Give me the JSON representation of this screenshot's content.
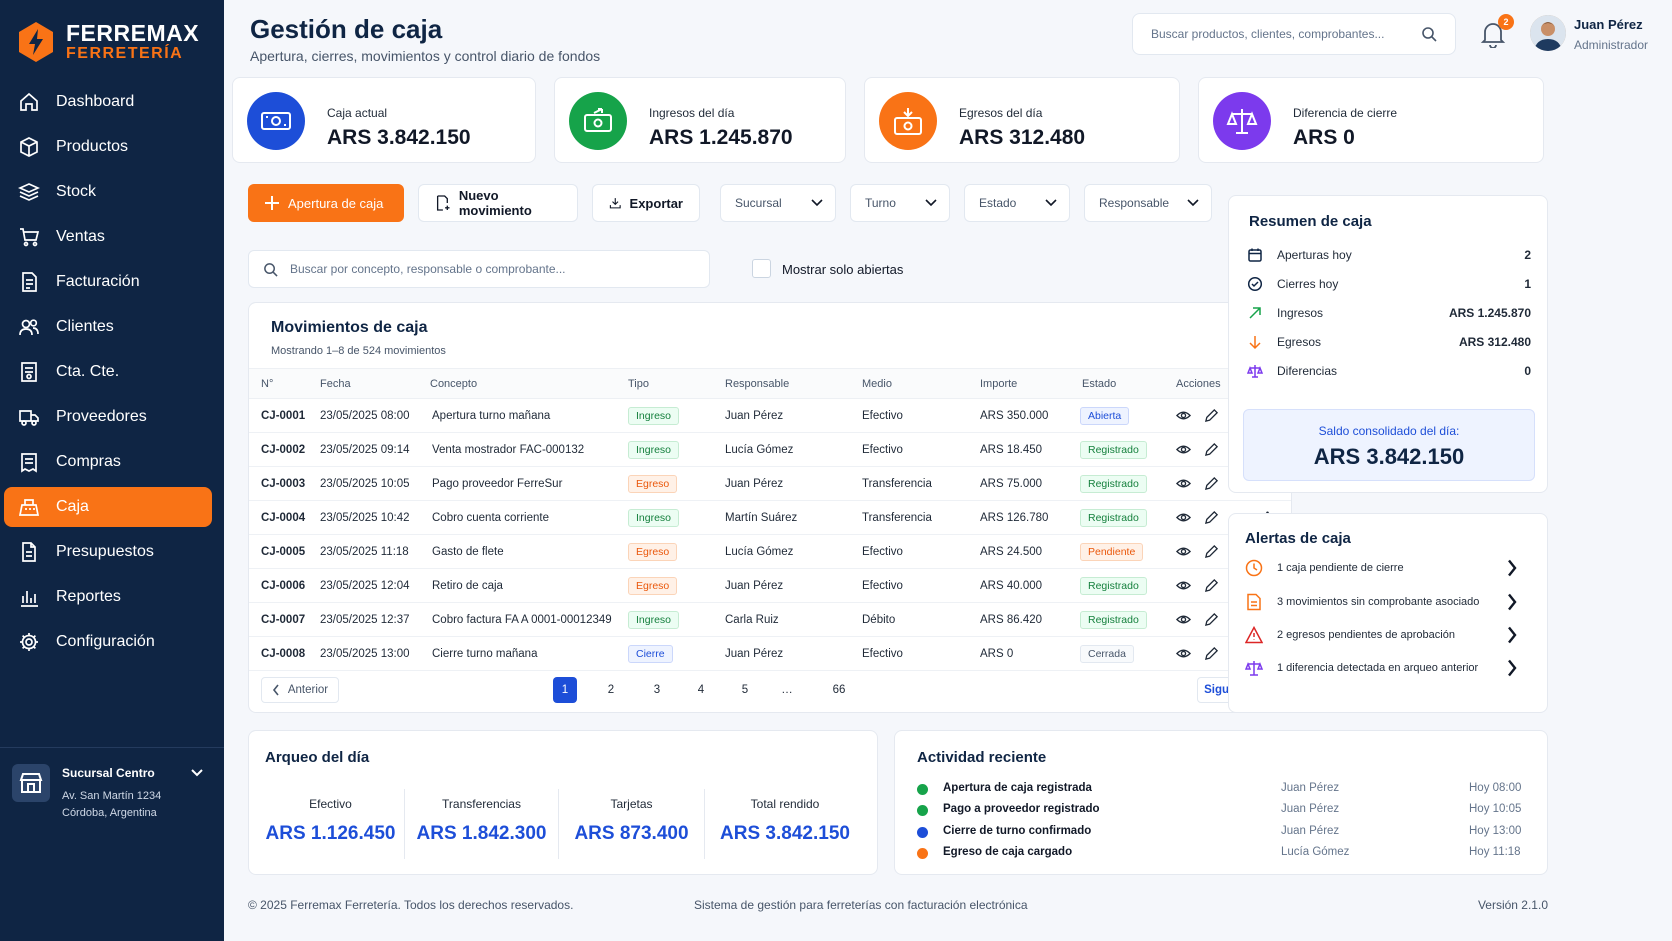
{
  "brand": {
    "name": "FERREMAX",
    "sub": "FERRETERÍA"
  },
  "nav": [
    {
      "label": "Dashboard",
      "icon": "home-icon"
    },
    {
      "label": "Productos",
      "icon": "box-icon"
    },
    {
      "label": "Stock",
      "icon": "layers-icon"
    },
    {
      "label": "Ventas",
      "icon": "cart-icon"
    },
    {
      "label": "Facturación",
      "icon": "invoice-icon"
    },
    {
      "label": "Clientes",
      "icon": "users-icon"
    },
    {
      "label": "Cta. Cte.",
      "icon": "ledger-icon"
    },
    {
      "label": "Proveedores",
      "icon": "truck-icon"
    },
    {
      "label": "Compras",
      "icon": "receipt-icon"
    },
    {
      "label": "Caja",
      "icon": "cash-register-icon",
      "active": true
    },
    {
      "label": "Presupuestos",
      "icon": "document-icon"
    },
    {
      "label": "Reportes",
      "icon": "bar-chart-icon"
    },
    {
      "label": "Configuración",
      "icon": "gear-icon"
    }
  ],
  "branch": {
    "name": "Sucursal Centro",
    "address1": "Av. San Martín 1234",
    "address2": "Córdoba, Argentina"
  },
  "header": {
    "title": "Gestión de caja",
    "subtitle": "Apertura, cierres, movimientos y control diario de fondos",
    "search_placeholder": "Buscar productos, clientes, comprobantes...",
    "notifications": "2",
    "user_name": "Juan Pérez",
    "user_role": "Administrador"
  },
  "stats": [
    {
      "label": "Caja actual",
      "value": "ARS 3.842.150",
      "color": "#1d4ed8"
    },
    {
      "label": "Ingresos del día",
      "value": "ARS 1.245.870",
      "color": "#16a34a"
    },
    {
      "label": "Egresos del día",
      "value": "ARS 312.480",
      "color": "#f97316"
    },
    {
      "label": "Diferencia de cierre",
      "value": "ARS 0",
      "color": "#7c3aed"
    }
  ],
  "toolbar": {
    "apertura": "Apertura de caja",
    "nuevo": "Nuevo movimiento",
    "exportar": "Exportar",
    "sucursal": "Sucursal",
    "turno": "Turno",
    "estado": "Estado",
    "responsable": "Responsable",
    "search_placeholder": "Buscar por concepto, responsable o comprobante...",
    "solo_abiertas": "Mostrar solo abiertas"
  },
  "movimientos": {
    "title": "Movimientos de caja",
    "count": "Mostrando 1–8 de 524 movimientos",
    "columns": [
      "N°",
      "Fecha",
      "Concepto",
      "Tipo",
      "Responsable",
      "Medio",
      "Importe",
      "Estado",
      "Acciones"
    ],
    "rows": [
      {
        "id": "CJ-0001",
        "fecha": "23/05/2025 08:00",
        "concepto": "Apertura turno mañana",
        "tipo": "Ingreso",
        "resp": "Juan Pérez",
        "medio": "Efectivo",
        "importe": "ARS 350.000",
        "estado": "Abierta"
      },
      {
        "id": "CJ-0002",
        "fecha": "23/05/2025 09:14",
        "concepto": "Venta mostrador FAC-000132",
        "tipo": "Ingreso",
        "resp": "Lucía Gómez",
        "medio": "Efectivo",
        "importe": "ARS 18.450",
        "estado": "Registrado"
      },
      {
        "id": "CJ-0003",
        "fecha": "23/05/2025 10:05",
        "concepto": "Pago proveedor FerreSur",
        "tipo": "Egreso",
        "resp": "Juan Pérez",
        "medio": "Transferencia",
        "importe": "ARS 75.000",
        "estado": "Registrado"
      },
      {
        "id": "CJ-0004",
        "fecha": "23/05/2025 10:42",
        "concepto": "Cobro cuenta corriente",
        "tipo": "Ingreso",
        "resp": "Martín Suárez",
        "medio": "Transferencia",
        "importe": "ARS 126.780",
        "estado": "Registrado"
      },
      {
        "id": "CJ-0005",
        "fecha": "23/05/2025 11:18",
        "concepto": "Gasto de flete",
        "tipo": "Egreso",
        "resp": "Lucía Gómez",
        "medio": "Efectivo",
        "importe": "ARS 24.500",
        "estado": "Pendiente"
      },
      {
        "id": "CJ-0006",
        "fecha": "23/05/2025 12:04",
        "concepto": "Retiro de caja",
        "tipo": "Egreso",
        "resp": "Juan Pérez",
        "medio": "Efectivo",
        "importe": "ARS 40.000",
        "estado": "Registrado"
      },
      {
        "id": "CJ-0007",
        "fecha": "23/05/2025 12:37",
        "concepto": "Cobro factura FA A 0001-00012349",
        "tipo": "Ingreso",
        "resp": "Carla Ruiz",
        "medio": "Débito",
        "importe": "ARS 86.420",
        "estado": "Registrado"
      },
      {
        "id": "CJ-0008",
        "fecha": "23/05/2025 13:00",
        "concepto": "Cierre turno mañana",
        "tipo": "Cierre",
        "resp": "Juan Pérez",
        "medio": "Efectivo",
        "importe": "ARS 0",
        "estado": "Cerrada"
      }
    ],
    "prev": "Anterior",
    "next": "Siguiente",
    "pages": [
      "1",
      "2",
      "3",
      "4",
      "5",
      "…",
      "66"
    ],
    "current_page": "1"
  },
  "resumen": {
    "title": "Resumen de caja",
    "rows": [
      {
        "label": "Aperturas hoy",
        "value": "2",
        "icon": "calendar-icon"
      },
      {
        "label": "Cierres hoy",
        "value": "1",
        "icon": "check-circle-icon"
      },
      {
        "label": "Ingresos",
        "value": "ARS 1.245.870",
        "icon": "arrow-up-right-icon"
      },
      {
        "label": "Egresos",
        "value": "ARS 312.480",
        "icon": "arrow-down-icon"
      },
      {
        "label": "Diferencias",
        "value": "0",
        "icon": "scale-icon"
      }
    ],
    "saldo_label": "Saldo consolidado del día:",
    "saldo_value": "ARS 3.842.150"
  },
  "alertas": {
    "title": "Alertas de caja",
    "items": [
      {
        "text": "1 caja pendiente de cierre",
        "icon": "clock-icon"
      },
      {
        "text": "3 movimientos sin comprobante asociado",
        "icon": "file-icon"
      },
      {
        "text": "2 egresos pendientes de aprobación",
        "icon": "warning-icon"
      },
      {
        "text": "1 diferencia detectada en arqueo anterior",
        "icon": "scale-icon"
      }
    ]
  },
  "arqueo": {
    "title": "Arqueo del día",
    "cols": [
      {
        "label": "Efectivo",
        "value": "ARS 1.126.450"
      },
      {
        "label": "Transferencias",
        "value": "ARS 1.842.300"
      },
      {
        "label": "Tarjetas",
        "value": "ARS 873.400"
      },
      {
        "label": "Total rendido",
        "value": "ARS 3.842.150"
      }
    ]
  },
  "actividad": {
    "title": "Actividad reciente",
    "items": [
      {
        "text": "Apertura de caja registrada",
        "user": "Juan Pérez",
        "time": "Hoy 08:00",
        "color": "#16a34a"
      },
      {
        "text": "Pago a proveedor registrado",
        "user": "Juan Pérez",
        "time": "Hoy 10:05",
        "color": "#16a34a"
      },
      {
        "text": "Cierre de turno confirmado",
        "user": "Juan Pérez",
        "time": "Hoy 13:00",
        "color": "#1d4ed8"
      },
      {
        "text": "Egreso de caja cargado",
        "user": "Lucía Gómez",
        "time": "Hoy 11:18",
        "color": "#f97316"
      }
    ]
  },
  "footer": {
    "copy": "© 2025 Ferremax Ferretería. Todos los derechos reservados.",
    "system": "Sistema de gestión para ferreterías con facturación electrónica",
    "version": "Versión 2.1.0"
  }
}
